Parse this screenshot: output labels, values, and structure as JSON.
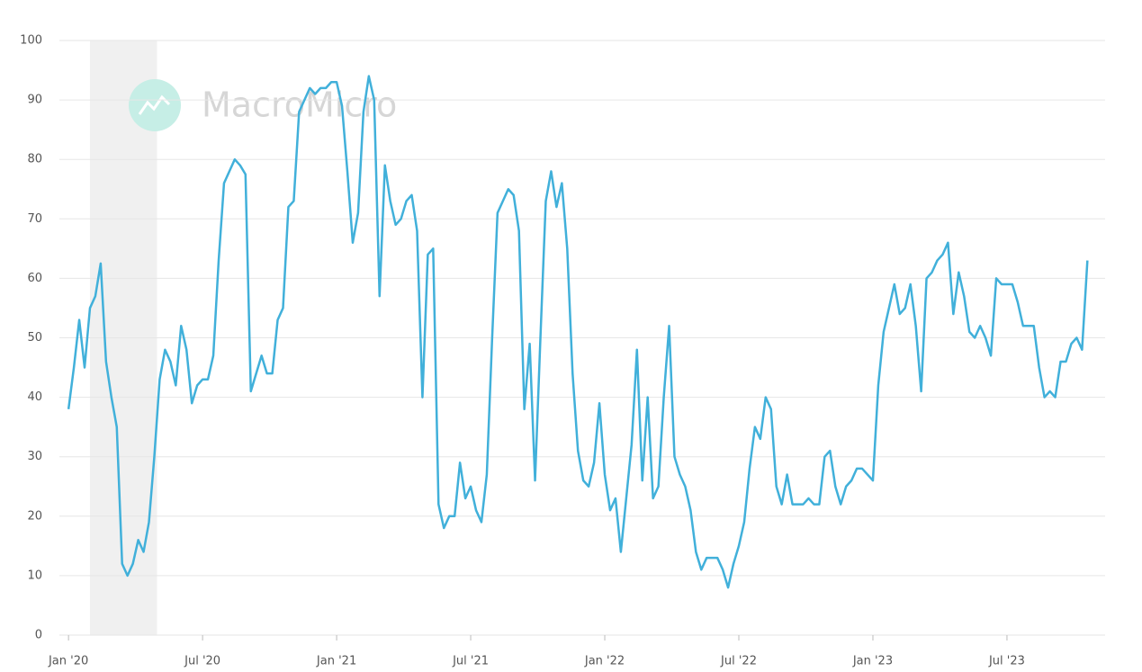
{
  "chart_data": {
    "type": "line",
    "watermark": "MacroMicro",
    "color": "#41b0da",
    "shade_color": "#f0f0f0",
    "shaded_ranges": [
      [
        2020.08,
        2020.33
      ]
    ],
    "grid": true,
    "xlim": [
      2019.966,
      2023.866
    ],
    "xticks": [
      {
        "value": 2020,
        "label": "Jan '20"
      },
      {
        "value": 2020.5,
        "label": "Jul '20"
      },
      {
        "value": 2021,
        "label": "Jan '21"
      },
      {
        "value": 2021.5,
        "label": "Jul '21"
      },
      {
        "value": 2022,
        "label": "Jan '22"
      },
      {
        "value": 2022.5,
        "label": "Jul '22"
      },
      {
        "value": 2023,
        "label": "Jan '23"
      },
      {
        "value": 2023.5,
        "label": "Jul '23"
      }
    ],
    "ylim": [
      0,
      100
    ],
    "yticks": [
      0,
      10,
      20,
      30,
      40,
      50,
      60,
      70,
      80,
      90,
      100
    ],
    "x": [
      2020,
      2020.02,
      2020.04,
      2020.06,
      2020.08,
      2020.1,
      2020.12,
      2020.14,
      2020.16,
      2020.18,
      2020.2,
      2020.22,
      2020.24,
      2020.26,
      2020.28,
      2020.3,
      2020.32,
      2020.34,
      2020.36,
      2020.38,
      2020.4,
      2020.42,
      2020.44,
      2020.46,
      2020.48,
      2020.5,
      2020.52,
      2020.54,
      2020.56,
      2020.58,
      2020.6,
      2020.62,
      2020.64,
      2020.66,
      2020.68,
      2020.7,
      2020.72,
      2020.74,
      2020.76,
      2020.78,
      2020.8,
      2020.82,
      2020.84,
      2020.86,
      2020.88,
      2020.9,
      2020.92,
      2020.94,
      2020.96,
      2020.98,
      2021,
      2021.02,
      2021.04,
      2021.06,
      2021.08,
      2021.1,
      2021.12,
      2021.14,
      2021.16,
      2021.18,
      2021.2,
      2021.22,
      2021.24,
      2021.26,
      2021.28,
      2021.3,
      2021.32,
      2021.34,
      2021.36,
      2021.38,
      2021.4,
      2021.42,
      2021.44,
      2021.46,
      2021.48,
      2021.5,
      2021.52,
      2021.54,
      2021.56,
      2021.58,
      2021.6,
      2021.62,
      2021.64,
      2021.66,
      2021.68,
      2021.7,
      2021.72,
      2021.74,
      2021.76,
      2021.78,
      2021.8,
      2021.82,
      2021.84,
      2021.86,
      2021.88,
      2021.9,
      2021.92,
      2021.94,
      2021.96,
      2021.98,
      2022,
      2022.02,
      2022.04,
      2022.06,
      2022.08,
      2022.1,
      2022.12,
      2022.14,
      2022.16,
      2022.18,
      2022.2,
      2022.22,
      2022.24,
      2022.26,
      2022.28,
      2022.3,
      2022.32,
      2022.34,
      2022.36,
      2022.38,
      2022.4,
      2022.42,
      2022.44,
      2022.46,
      2022.48,
      2022.5,
      2022.52,
      2022.54,
      2022.56,
      2022.58,
      2022.6,
      2022.62,
      2022.64,
      2022.66,
      2022.68,
      2022.7,
      2022.72,
      2022.74,
      2022.76,
      2022.78,
      2022.8,
      2022.82,
      2022.84,
      2022.86,
      2022.88,
      2022.9,
      2022.92,
      2022.94,
      2022.96,
      2022.98,
      2023,
      2023.02,
      2023.04,
      2023.06,
      2023.08,
      2023.1,
      2023.12,
      2023.14,
      2023.16,
      2023.18,
      2023.2,
      2023.22,
      2023.24,
      2023.26,
      2023.28,
      2023.3,
      2023.32,
      2023.34,
      2023.36,
      2023.38,
      2023.4,
      2023.42,
      2023.44,
      2023.46,
      2023.48,
      2023.5,
      2023.52,
      2023.54,
      2023.56,
      2023.58,
      2023.6,
      2023.62,
      2023.64,
      2023.66,
      2023.68,
      2023.7,
      2023.72,
      2023.74,
      2023.76,
      2023.78,
      2023.8
    ],
    "values": [
      38,
      45,
      53,
      45,
      55,
      57,
      62.5,
      46,
      40,
      35,
      12,
      10,
      12,
      16,
      14,
      19,
      30,
      43,
      48,
      46,
      42,
      52,
      48,
      39,
      42,
      43,
      43,
      47,
      63,
      76,
      78,
      80,
      79,
      77.5,
      41,
      44,
      47,
      44,
      44,
      53,
      55,
      72,
      73,
      88,
      90,
      92,
      91,
      92,
      92,
      93,
      93,
      89,
      78,
      66,
      71,
      88,
      94,
      90,
      57,
      79,
      73,
      69,
      70,
      73,
      74,
      68,
      40,
      64,
      65,
      22,
      18,
      20,
      20,
      29,
      23,
      25,
      21,
      19,
      27,
      50,
      71,
      73,
      75,
      74,
      68,
      38,
      49,
      26,
      50,
      73,
      78,
      72,
      76,
      65,
      44,
      31,
      26,
      25,
      29,
      39,
      27,
      21,
      23,
      14,
      23,
      32,
      48,
      26,
      40,
      23,
      25,
      40,
      52,
      30,
      27,
      25,
      21,
      14,
      11,
      13,
      13,
      13,
      11,
      8,
      12,
      15,
      19,
      28,
      35,
      33,
      40,
      38,
      25,
      22,
      27,
      22,
      22,
      22,
      23,
      22,
      22,
      30,
      31,
      25,
      22,
      25,
      26,
      28,
      28,
      27,
      26,
      42,
      51,
      55,
      59,
      54,
      55,
      59,
      52,
      41,
      60,
      61,
      63,
      64,
      66,
      54,
      61,
      57,
      51,
      50,
      52,
      50,
      47,
      60,
      59,
      59,
      59,
      56,
      52,
      52,
      52,
      45,
      40,
      41,
      40,
      46,
      46,
      49,
      50,
      48,
      63
    ]
  }
}
